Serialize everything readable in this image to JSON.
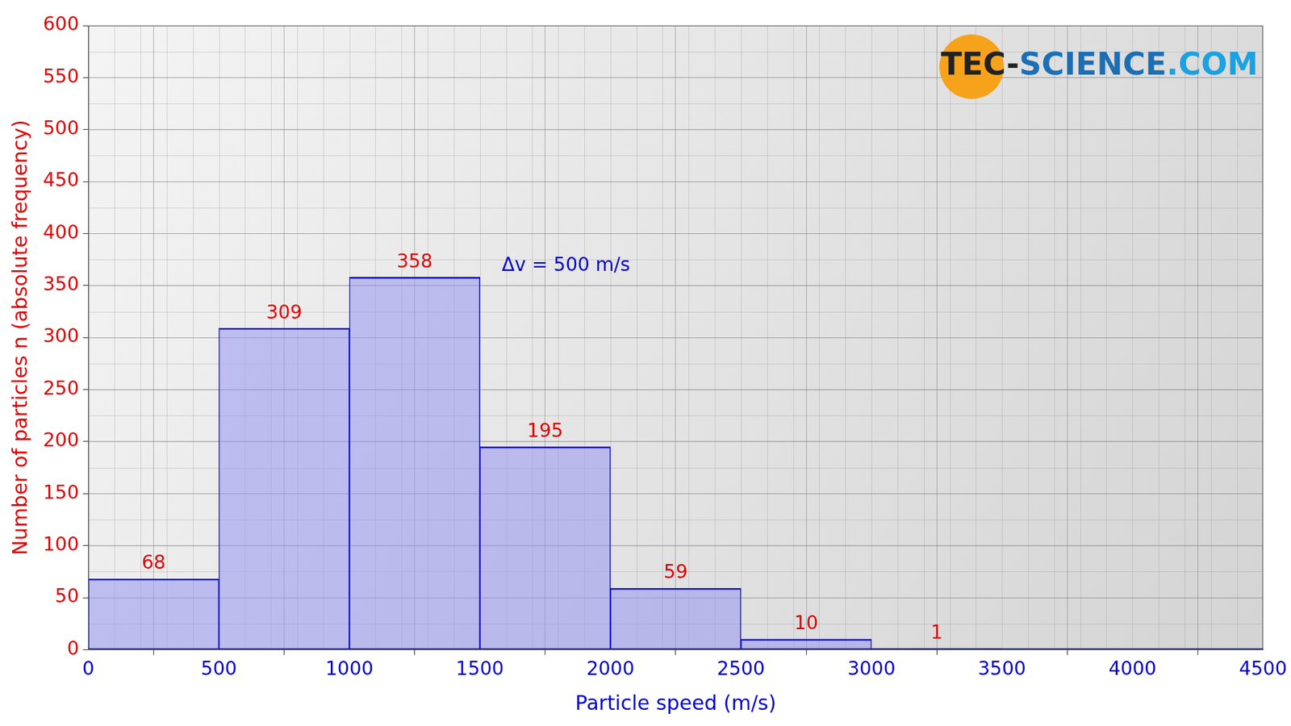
{
  "chart_data": {
    "type": "histogram",
    "xlabel": "Particle speed (m/s)",
    "ylabel": "Number of particles n (absolute frequency)",
    "annotations": [
      "Δv = 500 m/s"
    ],
    "watermark": "TEC-SCIENCE.COM",
    "bins": [
      0,
      500,
      1000,
      1500,
      2000,
      2500,
      3000,
      3500
    ],
    "values": [
      68,
      309,
      358,
      195,
      59,
      10,
      1
    ],
    "color": "#0000cc",
    "xlim": [
      0,
      4500
    ],
    "xticks": [
      0,
      500,
      1000,
      1500,
      2000,
      2500,
      3000,
      3500,
      4000,
      4500
    ],
    "ylim": [
      0,
      600
    ],
    "yticks": [
      0,
      50,
      100,
      150,
      200,
      250,
      300,
      350,
      400,
      450,
      500,
      550,
      600
    ],
    "grid": true,
    "data_labels": true
  }
}
